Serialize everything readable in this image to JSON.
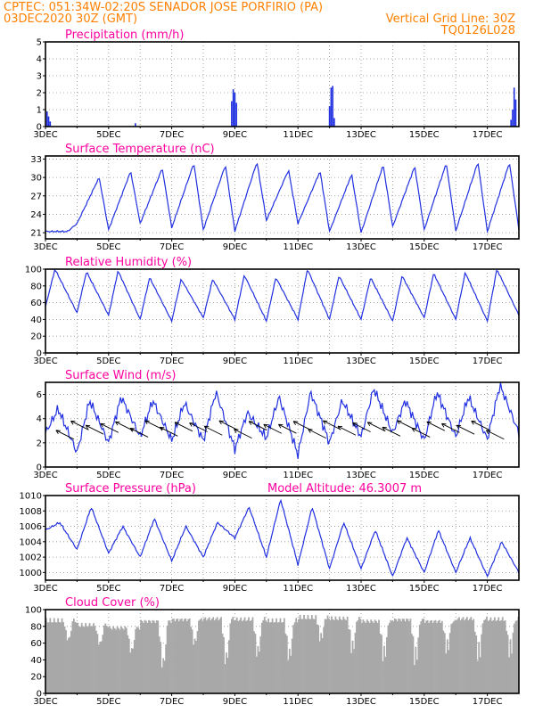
{
  "header": {
    "line1": "CPTEC:  051:34W-02:20S  SENADOR JOSE PORFIRIO (PA)",
    "line2_left": "03DEC2020 30Z (GMT)",
    "line2_right": "Vertical Grid Line: 30Z",
    "line3_right": "TQ0126L028"
  },
  "colors": {
    "header": "#ff8000",
    "title": "#ff00a0",
    "series": "#2030e0",
    "cloud": "#a8a8a8",
    "grid": "#909090",
    "arrow": "#000000"
  },
  "chart_data": [
    {
      "id": "precip",
      "type": "bar",
      "title": "Precipitation (mm/h)",
      "ylim": [
        0,
        5
      ],
      "yticks": [
        0,
        1,
        2,
        3,
        4,
        5
      ],
      "xlim": [
        0,
        15
      ],
      "xticks": [
        "3DEC",
        "5DEC",
        "7DEC",
        "9DEC",
        "11DEC",
        "13DEC",
        "15DEC",
        "17DEC"
      ],
      "x": [
        0.05,
        0.1,
        0.15,
        2.85,
        5.9,
        5.95,
        6.0,
        6.05,
        9.0,
        9.05,
        9.1,
        9.15,
        14.75,
        14.8,
        14.85,
        14.9
      ],
      "values": [
        0.9,
        0.6,
        0.3,
        0.2,
        1.5,
        2.2,
        2.0,
        1.4,
        1.2,
        2.3,
        2.4,
        0.5,
        0.4,
        1.0,
        2.3,
        1.6
      ]
    },
    {
      "id": "temp",
      "type": "line",
      "title": "Surface Temperature (nC)",
      "ylim": [
        20,
        33.5
      ],
      "yticks": [
        21,
        24,
        27,
        30,
        33
      ],
      "xlim": [
        0,
        15
      ],
      "xticks": [
        "3DEC",
        "5DEC",
        "7DEC",
        "9DEC",
        "11DEC",
        "13DEC",
        "15DEC",
        "17DEC"
      ],
      "daily_max": [
        21.2,
        30.0,
        31.0,
        31.5,
        32.3,
        32.0,
        32.5,
        31.2,
        31.0,
        30.5,
        32.0,
        31.8,
        32.3,
        32.5,
        32.4,
        31.5
      ],
      "daily_min": [
        21.2,
        22.5,
        21.5,
        22.5,
        21.8,
        21.5,
        21.3,
        23.0,
        22.5,
        21.2,
        21.0,
        22.0,
        21.5,
        21.3,
        21.2,
        21.5,
        27.5
      ]
    },
    {
      "id": "rh",
      "type": "line",
      "title": "Relative Humidity (%)",
      "ylim": [
        0,
        100
      ],
      "yticks": [
        0,
        20,
        40,
        60,
        80,
        100
      ],
      "xlim": [
        0,
        15
      ],
      "xticks": [
        "3DEC",
        "5DEC",
        "7DEC",
        "9DEC",
        "11DEC",
        "13DEC",
        "15DEC",
        "17DEC"
      ],
      "daily_max": [
        100,
        97,
        98,
        90,
        88,
        88,
        93,
        90,
        100,
        92,
        90,
        92,
        95,
        96,
        100,
        98
      ],
      "daily_min": [
        55,
        48,
        45,
        40,
        38,
        42,
        40,
        38,
        40,
        40,
        40,
        38,
        42,
        40,
        38,
        45
      ]
    },
    {
      "id": "wind",
      "type": "line",
      "title": "Surface Wind (m/s)",
      "ylim": [
        0,
        7
      ],
      "yticks": [
        0,
        2,
        4,
        6
      ],
      "xlim": [
        0,
        15
      ],
      "xticks": [
        "3DEC",
        "5DEC",
        "7DEC",
        "9DEC",
        "11DEC",
        "13DEC",
        "15DEC",
        "17DEC"
      ],
      "daily_max": [
        4.8,
        5.5,
        5.8,
        5.5,
        5.3,
        6.2,
        4.5,
        5.8,
        6.2,
        5.5,
        6.5,
        5.5,
        6.2,
        5.8,
        6.8,
        5.5
      ],
      "daily_min": [
        2.8,
        1.2,
        2.0,
        2.5,
        2.2,
        2.2,
        1.5,
        2.4,
        1.0,
        2.0,
        2.5,
        2.8,
        2.2,
        2.5,
        2.3,
        2.8
      ]
    },
    {
      "id": "pres",
      "type": "line",
      "title": "Surface Pressure (hPa)",
      "annotation": "Model Altitude: 46.3007 m",
      "ylim": [
        999,
        1010
      ],
      "yticks": [
        1000,
        1002,
        1004,
        1006,
        1008,
        1010
      ],
      "xlim": [
        0,
        15
      ],
      "xticks": [
        "3DEC",
        "5DEC",
        "7DEC",
        "9DEC",
        "11DEC",
        "13DEC",
        "15DEC",
        "17DEC"
      ],
      "daily_max": [
        1006.5,
        1008.5,
        1006.0,
        1007.0,
        1006.0,
        1006.5,
        1008.5,
        1009.5,
        1008.5,
        1006.5,
        1005.5,
        1004.5,
        1005.5,
        1004.5,
        1004.0,
        1003.5
      ],
      "daily_min": [
        1005.5,
        1003.0,
        1002.5,
        1002.0,
        1001.5,
        1002.0,
        1004.5,
        1002.0,
        1001.0,
        1000.5,
        1000.5,
        999.5,
        1000.0,
        1000.0,
        999.5,
        1000.0,
        1001.5
      ]
    },
    {
      "id": "cloud",
      "type": "bar",
      "title": "Cloud Cover (%)",
      "ylim": [
        0,
        100
      ],
      "yticks": [
        0,
        20,
        40,
        60,
        80,
        100
      ],
      "xlim": [
        0,
        15
      ],
      "xticks": [
        "3DEC",
        "5DEC",
        "7DEC",
        "9DEC",
        "11DEC",
        "13DEC",
        "15DEC",
        "17DEC"
      ],
      "daily_level": [
        90,
        85,
        82,
        90,
        92,
        93,
        92,
        90,
        94,
        93,
        90,
        92,
        90,
        93,
        92,
        90
      ],
      "daily_dip": [
        60,
        55,
        45,
        25,
        55,
        30,
        40,
        35,
        60,
        45,
        35,
        30,
        45,
        35,
        40,
        20
      ]
    }
  ]
}
